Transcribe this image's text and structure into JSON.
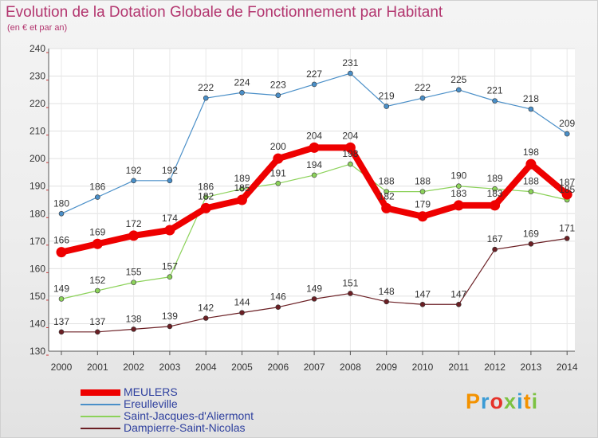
{
  "title": "Evolution de la Dotation Globale de Fonctionnement par Habitant",
  "subtitle": "(en € et par an)",
  "brand": {
    "text": "Proxiti",
    "colors": [
      "#f39200",
      "#3a9bd5",
      "#e5332a",
      "#7cc242",
      "#3a9bd5",
      "#f39200",
      "#7cc242"
    ]
  },
  "chart_data": {
    "type": "line",
    "x": [
      2000,
      2001,
      2002,
      2003,
      2004,
      2005,
      2006,
      2007,
      2008,
      2009,
      2010,
      2011,
      2012,
      2013,
      2014
    ],
    "ylim": [
      130,
      240
    ],
    "yticks": [
      130,
      140,
      150,
      160,
      170,
      180,
      190,
      200,
      210,
      220,
      230,
      240
    ],
    "grid": true,
    "legend_position": "bottom-left",
    "series": [
      {
        "name": "MEULERS",
        "color": "#ee0000",
        "emphasis": true,
        "values": [
          166,
          169,
          172,
          174,
          182,
          185,
          200,
          204,
          204,
          182,
          179,
          183,
          183,
          198,
          187
        ]
      },
      {
        "name": "Ereulleville",
        "color": "#4a8fc8",
        "values": [
          180,
          186,
          192,
          192,
          222,
          224,
          223,
          227,
          231,
          219,
          222,
          225,
          221,
          218,
          209
        ]
      },
      {
        "name": "Saint-Jacques-d'Aliermont",
        "color": "#8cd25a",
        "values": [
          149,
          152,
          155,
          157,
          186,
          189,
          191,
          194,
          198,
          188,
          188,
          190,
          189,
          188,
          185
        ]
      },
      {
        "name": "Dampierre-Saint-Nicolas",
        "color": "#6b1f24",
        "values": [
          137,
          137,
          138,
          139,
          142,
          144,
          146,
          149,
          151,
          148,
          147,
          147,
          167,
          169,
          171
        ]
      }
    ]
  }
}
